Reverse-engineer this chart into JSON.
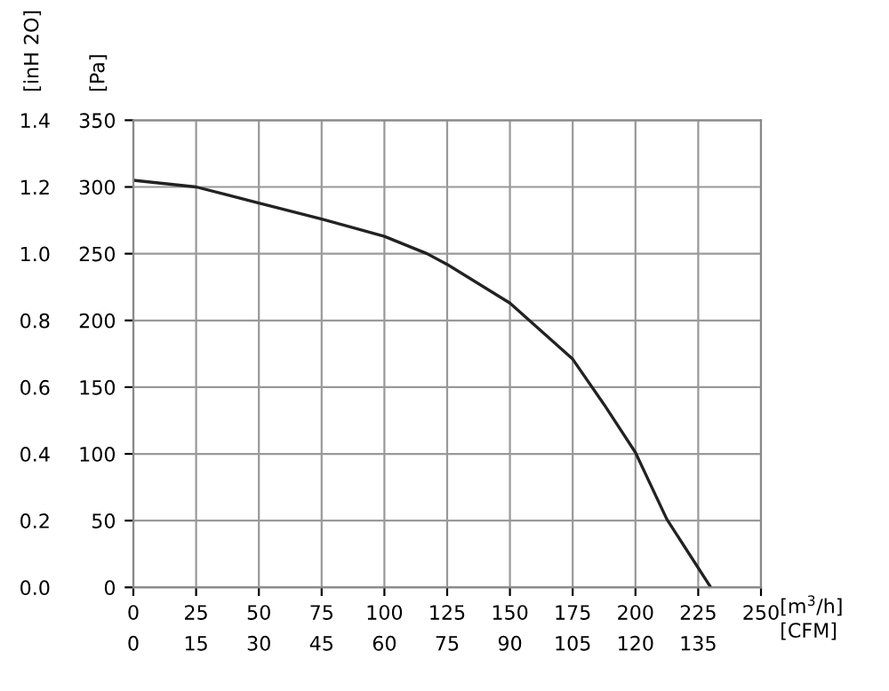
{
  "chart_data": {
    "type": "line",
    "x": [
      0,
      25,
      50,
      75,
      100,
      117,
      125,
      150,
      175,
      187.5,
      200,
      212.5,
      230
    ],
    "series": [
      {
        "color": "#222222",
        "values": [
          305,
          300,
          288,
          276,
          263,
          250,
          242,
          213,
          171,
          137,
          101,
          51,
          0
        ]
      }
    ],
    "xlim": [
      0,
      250
    ],
    "xticks": [
      0,
      25,
      50,
      75,
      100,
      125,
      150,
      175,
      200,
      225,
      250
    ],
    "x2lim": [
      0,
      150
    ],
    "x2ticks": [
      0,
      15,
      30,
      45,
      60,
      75,
      90,
      105,
      120,
      135
    ],
    "ylim": [
      0,
      350
    ],
    "yticks": [
      0,
      50,
      100,
      150,
      200,
      250,
      300,
      350
    ],
    "y2lim": [
      0,
      1.4
    ],
    "y2ticks": [
      {
        "value": 0,
        "label": "0.0"
      },
      {
        "value": 0.2,
        "label": "0.2"
      },
      {
        "value": 0.4,
        "label": "0.4"
      },
      {
        "value": 0.6,
        "label": "0.6"
      },
      {
        "value": 0.8,
        "label": "0.8"
      },
      {
        "value": 1.0,
        "label": "1.0"
      },
      {
        "value": 1.2,
        "label": "1.2"
      },
      {
        "value": 1.4,
        "label": "1.4"
      }
    ],
    "xlabel": "[m$^{3}$/h]",
    "x2label": "[CFM]",
    "ylabel": "[Pa]",
    "y2label": "[inH 2O]",
    "grid": true,
    "marker": "none",
    "line_style": "solid"
  }
}
